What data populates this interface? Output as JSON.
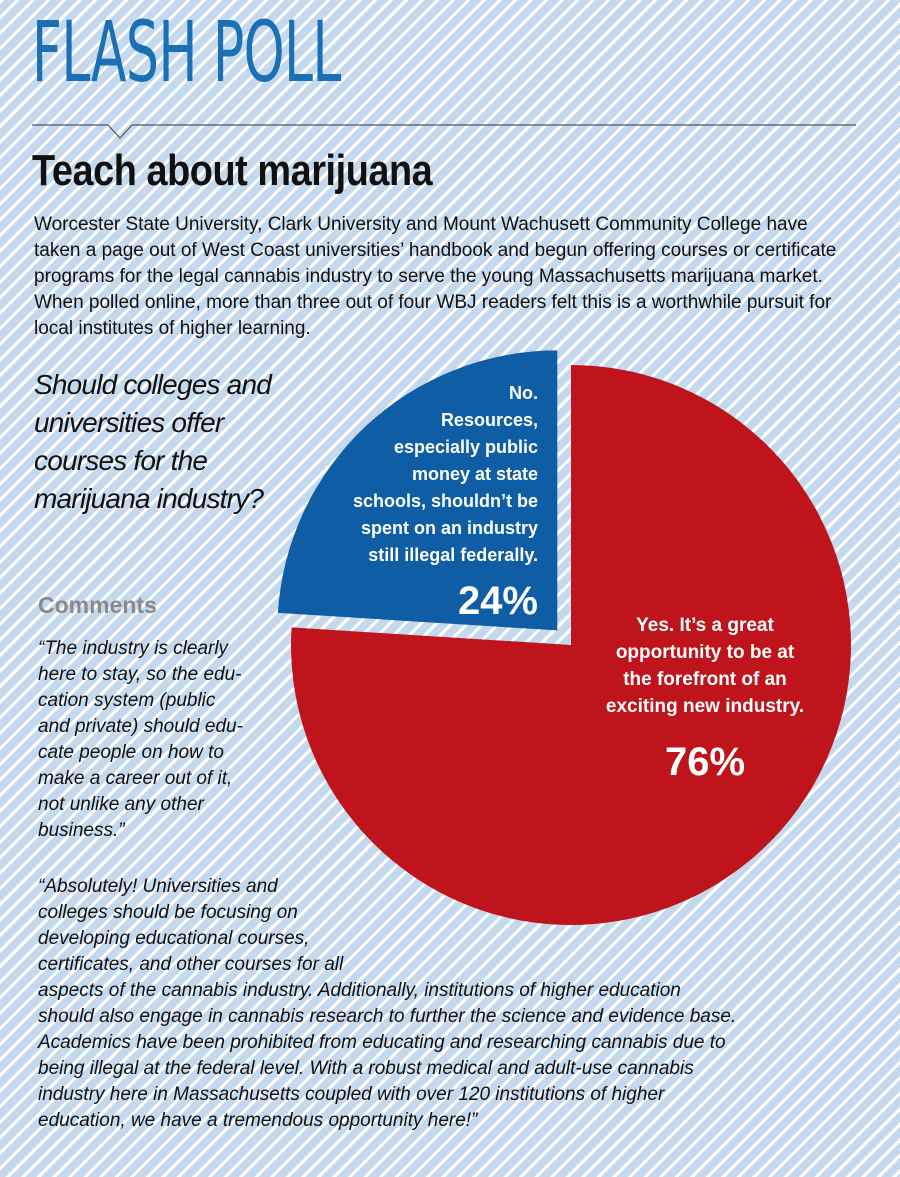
{
  "brand": "FLASH POLL",
  "headline": "Teach about marijuana",
  "intro": "Worcester State University, Clark University and Mount Wachusett Community College have taken a page out of West Coast universities’ handbook and begun offering courses or certificate programs for the legal cannabis industry to serve the young Massachusetts marijuana market. When polled online, more than three out of four WBJ readers felt this is a worthwhile pursuit for local institutes of higher learning.",
  "question": "Should colleges and universities offer courses for the marijuana industry?",
  "comments_heading": "Comments",
  "comments": [
    "“The industry is clearly here to stay, so the edu-cation system (public and private) should edu-cate people on how to make a career out of it, not unlike any other business.”",
    "“Absolutely! Universities and\ncolleges should be focusing on\ndeveloping educational courses,\ncertificates, and other courses for all\naspects of the cannabis industry. Additionally, institutions of higher education\nshould also engage in cannabis research to further the science and evidence base.\nAcademics have been prohibited from educating and researching cannabis due to\nbeing illegal at the federal level. With a robust medical and adult-use cannabis\nindustry here in Massachusetts coupled with over 120 institutions of higher\neducation, we have a tremendous opportunity here!”"
  ],
  "chart_data": {
    "type": "pie",
    "title": "Should colleges and universities offer courses for the marijuana industry?",
    "slices": [
      {
        "label": "No. Resources, especially public money at state schools, shouldn’t be spent on an industry still illegal federally.",
        "value": 24,
        "value_label": "24%",
        "color": "#0f5ea5",
        "exploded": true
      },
      {
        "label": "Yes. It’s a great opportunity to be at the forefront of an exciting new industry.",
        "value": 76,
        "value_label": "76%",
        "color": "#c0141c",
        "exploded": false
      }
    ],
    "start": "top, clockwise from No slice drawn counter-clockwise"
  }
}
